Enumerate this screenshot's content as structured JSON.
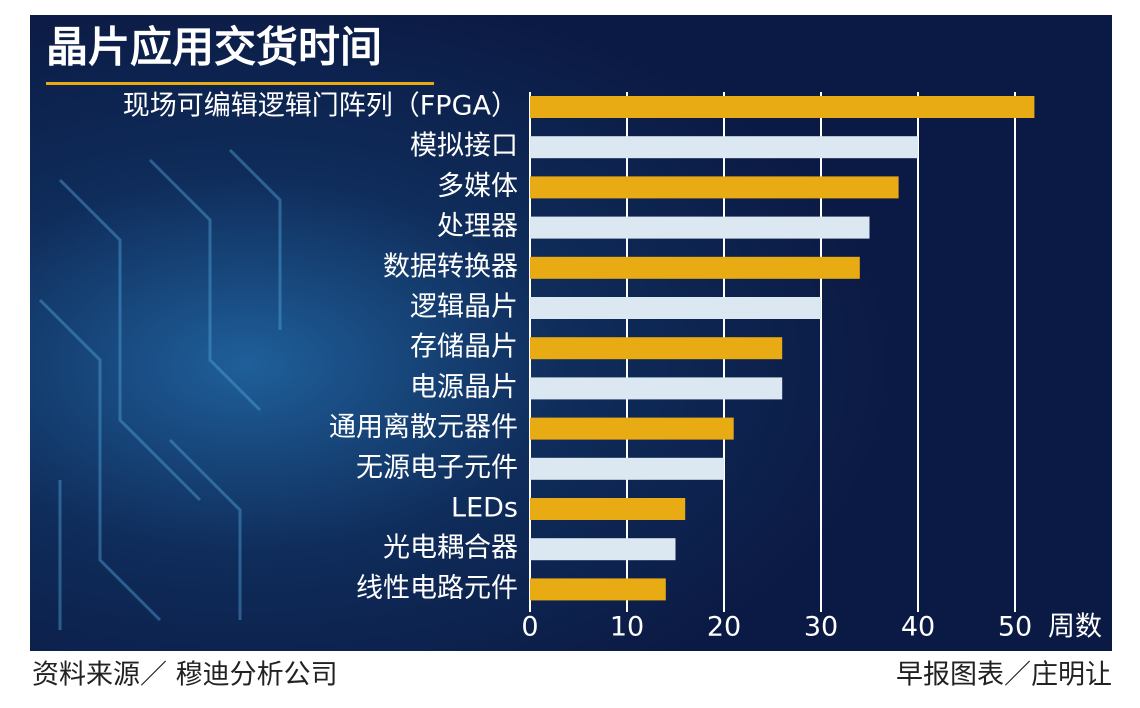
{
  "chart_data": {
    "type": "hbar",
    "title": "晶片应用交货时间",
    "categories": [
      "现场可编辑逻辑门阵列（FPGA）",
      "模拟接口",
      "多媒体",
      "处理器",
      "数据转换器",
      "逻辑晶片",
      "存储晶片",
      "电源晶片",
      "通用离散元器件",
      "无源电子元件",
      "LEDs",
      "光电耦合器",
      "线性电路元件"
    ],
    "values": [
      52,
      40,
      38,
      35,
      34,
      30,
      26,
      26,
      21,
      20,
      16,
      15,
      14
    ],
    "colors": [
      "#e9ab13",
      "#dbe8f1",
      "#e9ab13",
      "#dbe8f1",
      "#e9ab13",
      "#dbe8f1",
      "#e9ab13",
      "#dbe8f1",
      "#e9ab13",
      "#dbe8f1",
      "#e9ab13",
      "#dbe8f1",
      "#e9ab13"
    ],
    "xlim": [
      0,
      60
    ],
    "xticks": [
      0,
      10,
      20,
      30,
      40,
      50
    ],
    "xlabel": "周数",
    "grid": true
  },
  "footer": {
    "source": "资料来源／ 穆迪分析公司",
    "credit": "早报图表／庄明让"
  }
}
